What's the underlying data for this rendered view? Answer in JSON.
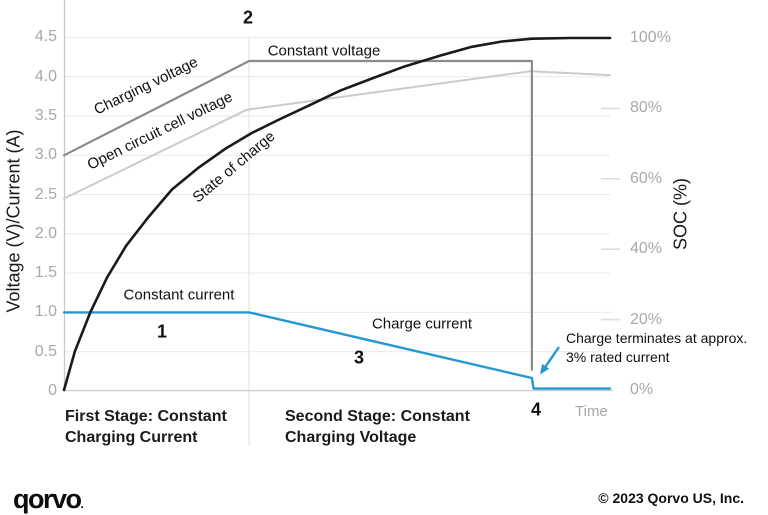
{
  "colors": {
    "charging_voltage_gray": "#8a8a8a",
    "open_circuit_light_gray": "#cbcbcb",
    "soc_black": "#1a1a1a",
    "current_blue": "#2598d2",
    "grid": "#e9e9e9",
    "axis": "#c9c9c9",
    "tick_text": "#a8a8a8"
  },
  "chart_data": {
    "type": "line",
    "x_axis": {
      "label": "Time",
      "range": [
        0,
        100
      ],
      "tick_labels": []
    },
    "y_axis_left": {
      "label": "Voltage (V)/Current (A)",
      "range": [
        0,
        4.5
      ],
      "tick_labels": [
        "4.5",
        "4.0",
        "3.5",
        "3.0",
        "2.5",
        "2.0",
        "1.5",
        "1.0",
        "0.5",
        "0"
      ],
      "tick_values": [
        4.5,
        4.0,
        3.5,
        3.0,
        2.5,
        2.0,
        1.5,
        1.0,
        0.5,
        0
      ]
    },
    "y_axis_right": {
      "label": "SOC (%)",
      "range": [
        0,
        100
      ],
      "tick_labels": [
        "100%",
        "80%",
        "60%",
        "40%",
        "20%",
        "0%"
      ],
      "tick_values": [
        100,
        80,
        60,
        40,
        20,
        0
      ],
      "dash_tick_values": [
        80,
        60,
        40,
        20
      ]
    },
    "grid": true,
    "legend_position": "inline-labels",
    "stage_boundaries_t": [
      33.9,
      85.7
    ],
    "series": [
      {
        "name": "Open circuit cell voltage",
        "axis": "left",
        "color": "#cbcbcb",
        "stroke_width": 2,
        "points": [
          [
            0,
            2.45
          ],
          [
            33.5,
            3.58
          ],
          [
            85.5,
            4.07
          ],
          [
            100,
            4.02
          ]
        ]
      },
      {
        "name": "Charging voltage",
        "axis": "left",
        "color": "#8a8a8a",
        "stroke_width": 2.2,
        "points": [
          [
            0,
            3.0
          ],
          [
            33.9,
            4.2
          ],
          [
            85.7,
            4.2
          ],
          [
            85.7,
            0.27
          ]
        ]
      },
      {
        "name": "Charge current",
        "axis": "left",
        "color": "#2598d2",
        "stroke_width": 2.4,
        "points": [
          [
            0,
            1.0
          ],
          [
            33.9,
            1.0
          ],
          [
            85.7,
            0.165
          ],
          [
            86,
            0.03
          ],
          [
            100,
            0.03
          ]
        ]
      },
      {
        "name": "State of charge",
        "axis": "right",
        "color": "#1a1a1a",
        "stroke_width": 2.6,
        "points": [
          [
            0,
            0
          ],
          [
            2,
            11
          ],
          [
            4.8,
            22
          ],
          [
            7.9,
            32
          ],
          [
            11.4,
            41
          ],
          [
            15.4,
            49
          ],
          [
            19.8,
            57
          ],
          [
            24.5,
            63
          ],
          [
            29.5,
            68.5
          ],
          [
            34.4,
            73
          ],
          [
            39.6,
            77
          ],
          [
            45.1,
            81
          ],
          [
            50.5,
            85
          ],
          [
            56.4,
            88.5
          ],
          [
            62.5,
            92
          ],
          [
            68.9,
            95
          ],
          [
            74.7,
            97.5
          ],
          [
            80.2,
            99
          ],
          [
            85.7,
            99.8
          ],
          [
            92.7,
            100
          ],
          [
            100,
            100
          ]
        ]
      }
    ]
  },
  "annotations": {
    "marker_1": "1",
    "marker_2": "2",
    "marker_3": "3",
    "marker_4": "4",
    "constant_voltage": "Constant voltage",
    "constant_current": "Constant current",
    "terminate_line1": "Charge terminates at approx.",
    "terminate_line2": "3% rated current",
    "time": "Time"
  },
  "stages": {
    "first": {
      "line1": "First Stage: Constant",
      "line2": "Charging Current"
    },
    "second": {
      "line1": "Second Stage: Constant",
      "line2": "Charging Voltage"
    }
  },
  "footer": {
    "logo_text": "qorvo",
    "logo_mark": ".",
    "copyright": "© 2023 Qorvo US, Inc."
  }
}
